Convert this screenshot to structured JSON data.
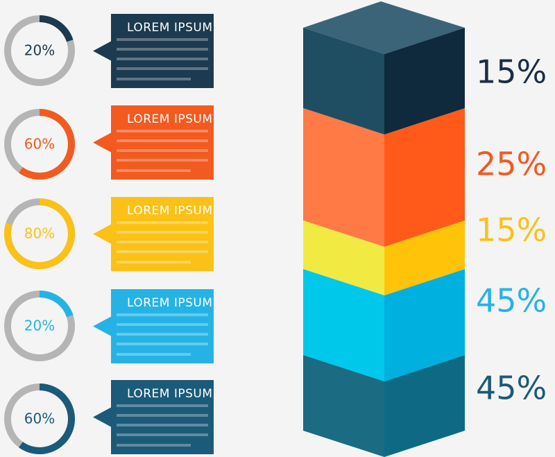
{
  "items": [
    {
      "value": 20,
      "label": "20%",
      "title": "LOREM IPSUM",
      "color": "#1c3a50"
    },
    {
      "value": 60,
      "label": "60%",
      "title": "LOREM IPSUM",
      "color": "#f25a20"
    },
    {
      "value": 80,
      "label": "80%",
      "title": "LOREM IPSUM",
      "color": "#fbc117"
    },
    {
      "value": 20,
      "label": "20%",
      "title": "LOREM IPSUM",
      "color": "#25b3e6"
    },
    {
      "value": 60,
      "label": "60%",
      "title": "LOREM IPSUM",
      "color": "#1b5a78"
    }
  ],
  "column": {
    "labels": [
      {
        "text": "15%",
        "color": "#1a2d44"
      },
      {
        "text": "25%",
        "color": "#f25a20"
      },
      {
        "text": "15%",
        "color": "#fbc117"
      },
      {
        "text": "45%",
        "color": "#25b3e6"
      },
      {
        "text": "45%",
        "color": "#1b5a78"
      }
    ]
  }
}
